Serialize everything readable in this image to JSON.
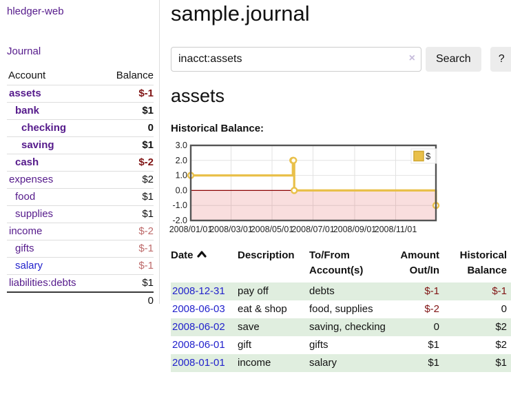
{
  "app": {
    "title_link": "hledger-web",
    "nav_journal": "Journal"
  },
  "page": {
    "title": "sample.journal"
  },
  "search": {
    "value": "inacct:assets",
    "clear_icon": "×",
    "button_label": "Search",
    "help_label": "?"
  },
  "main": {
    "account_heading": "assets",
    "chart_heading": "Historical Balance:"
  },
  "colors": {
    "link_purple": "#551a8b",
    "link_blue": "#2222cc",
    "neg_dark_red": "#801414",
    "neg_rose": "#bd6a6a",
    "zebra_green": "#e0eedf",
    "chart_gold": "#e9c04a",
    "chart_zero_line": "#8b0000",
    "chart_negative_region": "#f6d6d6"
  },
  "sidebar": {
    "columns": {
      "account": "Account",
      "balance": "Balance"
    },
    "rows": [
      {
        "label": "assets",
        "indent": 1,
        "bold": true,
        "link_color": "purple",
        "balance": "$-1",
        "tone": "dark-red"
      },
      {
        "label": "bank",
        "indent": 2,
        "bold": true,
        "link_color": "purple",
        "balance": "$1",
        "tone": null
      },
      {
        "label": "checking",
        "indent": 3,
        "bold": true,
        "link_color": "purple",
        "balance": "0",
        "tone": null
      },
      {
        "label": "saving",
        "indent": 3,
        "bold": true,
        "link_color": "purple",
        "balance": "$1",
        "tone": null
      },
      {
        "label": "cash",
        "indent": 2,
        "bold": true,
        "link_color": "purple",
        "balance": "$-2",
        "tone": "dark-red"
      },
      {
        "label": "expenses",
        "indent": 1,
        "bold": false,
        "link_color": "purple",
        "balance": "$2",
        "tone": null
      },
      {
        "label": "food",
        "indent": 2,
        "bold": false,
        "link_color": "purple",
        "balance": "$1",
        "tone": null
      },
      {
        "label": "supplies",
        "indent": 2,
        "bold": false,
        "link_color": "purple",
        "balance": "$1",
        "tone": null
      },
      {
        "label": "income",
        "indent": 1,
        "bold": false,
        "link_color": "purple",
        "balance": "$-2",
        "tone": "rose"
      },
      {
        "label": "gifts",
        "indent": 2,
        "bold": false,
        "link_color": "purple",
        "balance": "$-1",
        "tone": "rose"
      },
      {
        "label": "salary",
        "indent": 2,
        "bold": false,
        "link_color": "blue",
        "balance": "$-1",
        "tone": "rose"
      },
      {
        "label": "liabilities:debts",
        "indent": 1,
        "bold": false,
        "link_color": "purple",
        "balance": "$1",
        "tone": null
      }
    ],
    "total": "0"
  },
  "chart_data": {
    "type": "line",
    "title": "Historical Balance",
    "step": true,
    "x_range": [
      "2008-01-01",
      "2008-12-31"
    ],
    "x_ticks": [
      "2008/01/01",
      "2008/03/01",
      "2008/05/01",
      "2008/07/01",
      "2008/09/01",
      "2008/11/01"
    ],
    "y_ticks": [
      3.0,
      2.0,
      1.0,
      0.0,
      -1.0,
      -2.0
    ],
    "ylim": [
      -2,
      3
    ],
    "grid": true,
    "legend_position": "top-right",
    "series": [
      {
        "name": "$",
        "color": "#e9c04a",
        "points": [
          [
            "2008-01-01",
            1
          ],
          [
            "2008-06-01",
            2
          ],
          [
            "2008-06-02",
            2
          ],
          [
            "2008-06-03",
            0
          ],
          [
            "2008-12-31",
            -1
          ]
        ]
      }
    ]
  },
  "register": {
    "headers": [
      {
        "label": "Date",
        "lines": "Date",
        "align": "left",
        "sortable": true
      },
      {
        "label": "Description",
        "lines": "Description",
        "align": "left",
        "sortable": false
      },
      {
        "label": "To/From Account(s)",
        "lines": "To/From\nAccount(s)",
        "align": "left",
        "sortable": false
      },
      {
        "label": "Amount Out/In",
        "lines": "Amount\nOut/In",
        "align": "right",
        "sortable": false
      },
      {
        "label": "Historical Balance",
        "lines": "Historical\nBalance",
        "align": "right",
        "sortable": false
      }
    ],
    "rows": [
      {
        "date": "2008-12-31",
        "description": "pay off",
        "accounts": "debts",
        "amount": "$-1",
        "balance": "$-1"
      },
      {
        "date": "2008-06-03",
        "description": "eat & shop",
        "accounts": "food, supplies",
        "amount": "$-2",
        "balance": "0"
      },
      {
        "date": "2008-06-02",
        "description": "save",
        "accounts": "saving, checking",
        "amount": "0",
        "balance": "$2"
      },
      {
        "date": "2008-06-01",
        "description": "gift",
        "accounts": "gifts",
        "amount": "$1",
        "balance": "$2"
      },
      {
        "date": "2008-01-01",
        "description": "income",
        "accounts": "salary",
        "amount": "$1",
        "balance": "$1"
      }
    ]
  }
}
